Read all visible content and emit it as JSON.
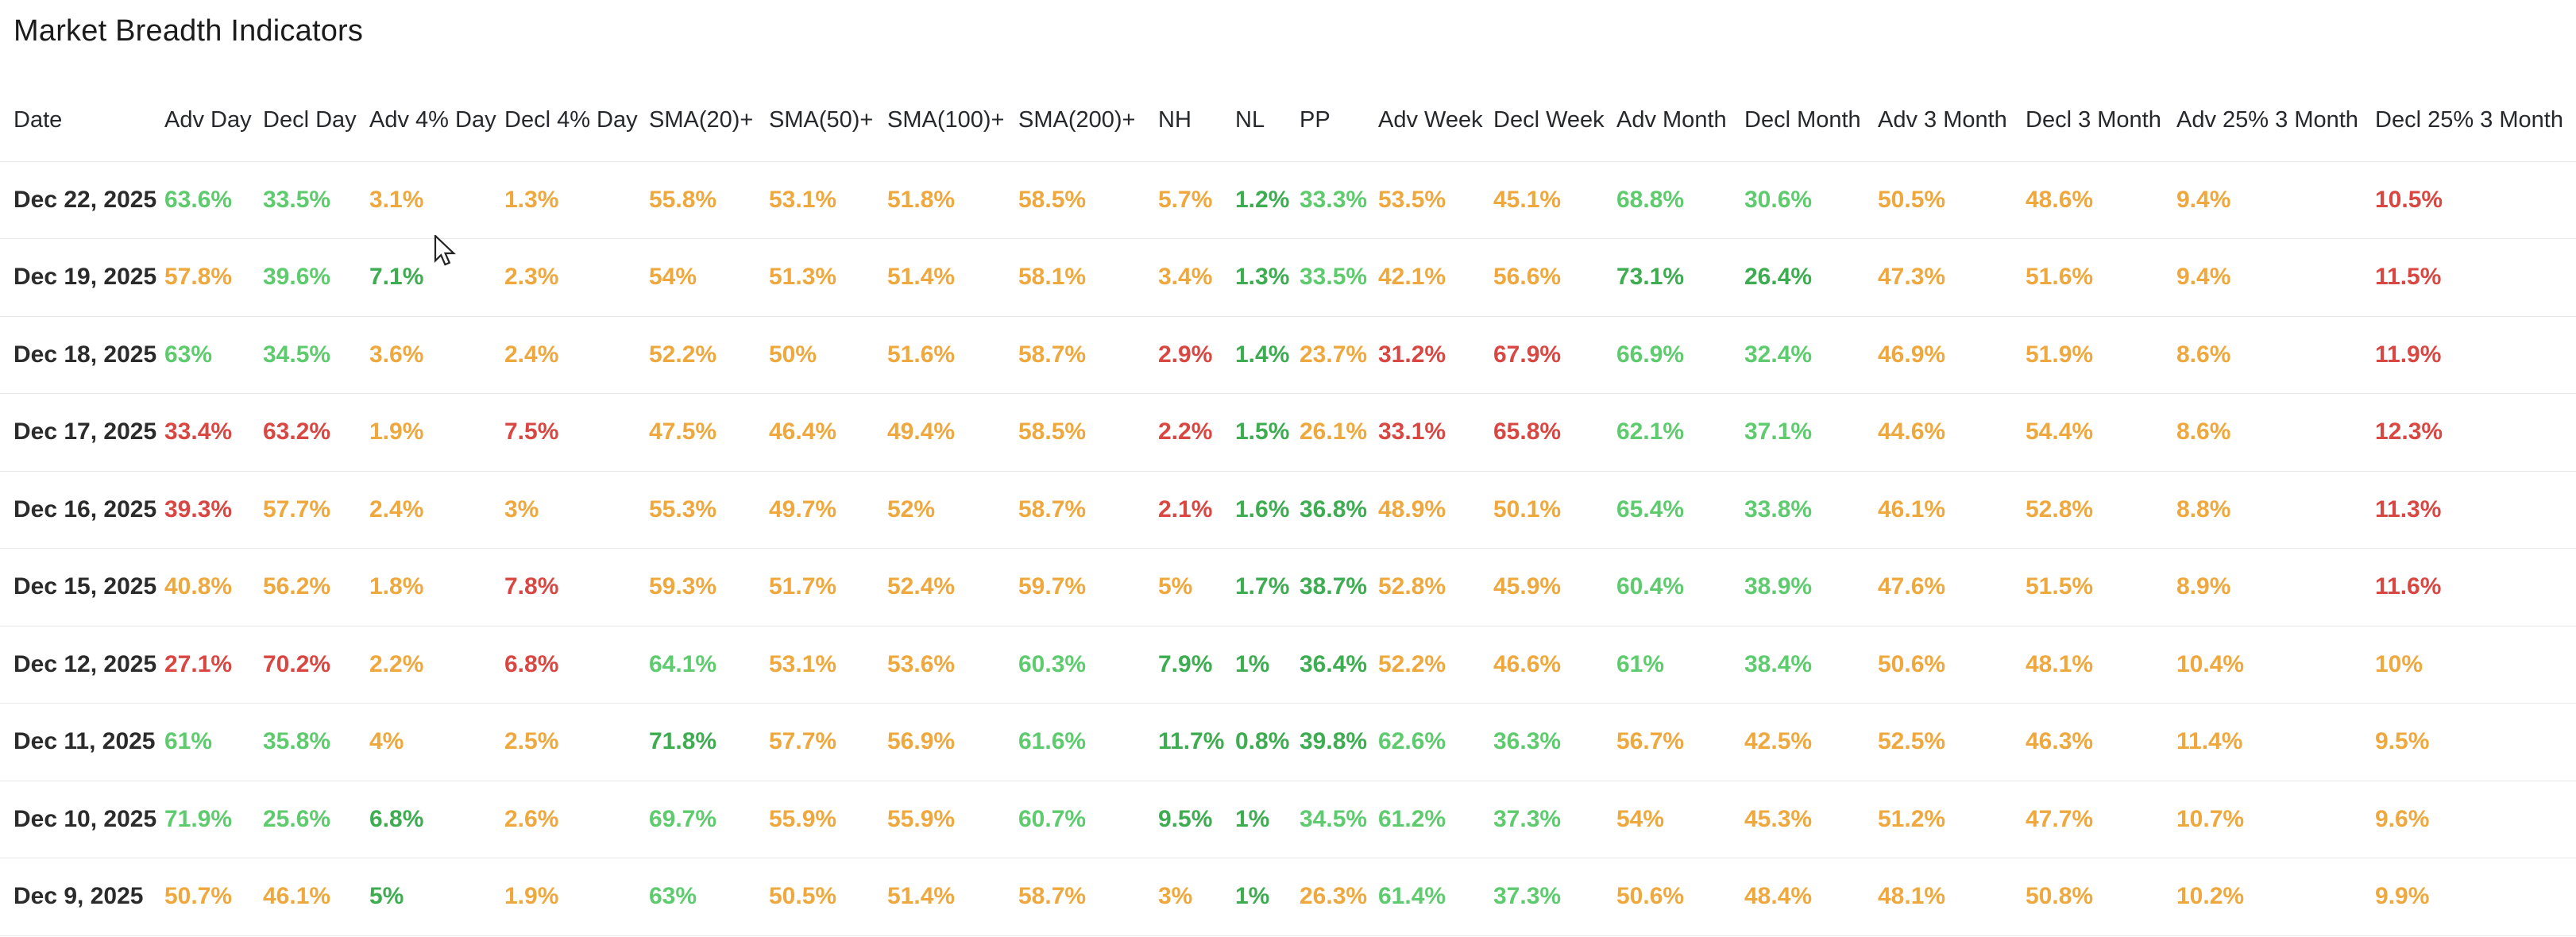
{
  "page": {
    "title": "Market Breadth Indicators"
  },
  "colors": {
    "light_green": "#5ECB6E",
    "dark_green": "#3EAC51",
    "amber": "#EEA83E",
    "red": "#D94743",
    "date_text": "#2b2b2b",
    "header_text": "#26282b",
    "divider": "#e8e8e8"
  },
  "table": {
    "columns": [
      "Date",
      "Adv Day",
      "Decl Day",
      "Adv 4% Day",
      "Decl 4% Day",
      "SMA(20)+",
      "SMA(50)+",
      "SMA(100)+",
      "SMA(200)+",
      "NH",
      "NL",
      "PP",
      "Adv Week",
      "Decl Week",
      "Adv Month",
      "Decl Month",
      "Adv 3 Month",
      "Decl 3 Month",
      "Adv 25% 3 Month",
      "Decl 25% 3 Month"
    ],
    "rows": [
      {
        "date": "Dec 22, 2025",
        "values": [
          {
            "v": "63.6%",
            "c": "lg"
          },
          {
            "v": "33.5%",
            "c": "lg"
          },
          {
            "v": "3.1%",
            "c": "am"
          },
          {
            "v": "1.3%",
            "c": "am"
          },
          {
            "v": "55.8%",
            "c": "am"
          },
          {
            "v": "53.1%",
            "c": "am"
          },
          {
            "v": "51.8%",
            "c": "am"
          },
          {
            "v": "58.5%",
            "c": "am"
          },
          {
            "v": "5.7%",
            "c": "am"
          },
          {
            "v": "1.2%",
            "c": "dg"
          },
          {
            "v": "33.3%",
            "c": "lg"
          },
          {
            "v": "53.5%",
            "c": "am"
          },
          {
            "v": "45.1%",
            "c": "am"
          },
          {
            "v": "68.8%",
            "c": "lg"
          },
          {
            "v": "30.6%",
            "c": "lg"
          },
          {
            "v": "50.5%",
            "c": "am"
          },
          {
            "v": "48.6%",
            "c": "am"
          },
          {
            "v": "9.4%",
            "c": "am"
          },
          {
            "v": "10.5%",
            "c": "rd"
          }
        ]
      },
      {
        "date": "Dec 19, 2025",
        "values": [
          {
            "v": "57.8%",
            "c": "am"
          },
          {
            "v": "39.6%",
            "c": "lg"
          },
          {
            "v": "7.1%",
            "c": "dg"
          },
          {
            "v": "2.3%",
            "c": "am"
          },
          {
            "v": "54%",
            "c": "am"
          },
          {
            "v": "51.3%",
            "c": "am"
          },
          {
            "v": "51.4%",
            "c": "am"
          },
          {
            "v": "58.1%",
            "c": "am"
          },
          {
            "v": "3.4%",
            "c": "am"
          },
          {
            "v": "1.3%",
            "c": "dg"
          },
          {
            "v": "33.5%",
            "c": "lg"
          },
          {
            "v": "42.1%",
            "c": "am"
          },
          {
            "v": "56.6%",
            "c": "am"
          },
          {
            "v": "73.1%",
            "c": "dg"
          },
          {
            "v": "26.4%",
            "c": "dg"
          },
          {
            "v": "47.3%",
            "c": "am"
          },
          {
            "v": "51.6%",
            "c": "am"
          },
          {
            "v": "9.4%",
            "c": "am"
          },
          {
            "v": "11.5%",
            "c": "rd"
          }
        ]
      },
      {
        "date": "Dec 18, 2025",
        "values": [
          {
            "v": "63%",
            "c": "lg"
          },
          {
            "v": "34.5%",
            "c": "lg"
          },
          {
            "v": "3.6%",
            "c": "am"
          },
          {
            "v": "2.4%",
            "c": "am"
          },
          {
            "v": "52.2%",
            "c": "am"
          },
          {
            "v": "50%",
            "c": "am"
          },
          {
            "v": "51.6%",
            "c": "am"
          },
          {
            "v": "58.7%",
            "c": "am"
          },
          {
            "v": "2.9%",
            "c": "rd"
          },
          {
            "v": "1.4%",
            "c": "dg"
          },
          {
            "v": "23.7%",
            "c": "am"
          },
          {
            "v": "31.2%",
            "c": "rd"
          },
          {
            "v": "67.9%",
            "c": "rd"
          },
          {
            "v": "66.9%",
            "c": "lg"
          },
          {
            "v": "32.4%",
            "c": "lg"
          },
          {
            "v": "46.9%",
            "c": "am"
          },
          {
            "v": "51.9%",
            "c": "am"
          },
          {
            "v": "8.6%",
            "c": "am"
          },
          {
            "v": "11.9%",
            "c": "rd"
          }
        ]
      },
      {
        "date": "Dec 17, 2025",
        "values": [
          {
            "v": "33.4%",
            "c": "rd"
          },
          {
            "v": "63.2%",
            "c": "rd"
          },
          {
            "v": "1.9%",
            "c": "am"
          },
          {
            "v": "7.5%",
            "c": "rd"
          },
          {
            "v": "47.5%",
            "c": "am"
          },
          {
            "v": "46.4%",
            "c": "am"
          },
          {
            "v": "49.4%",
            "c": "am"
          },
          {
            "v": "58.5%",
            "c": "am"
          },
          {
            "v": "2.2%",
            "c": "rd"
          },
          {
            "v": "1.5%",
            "c": "dg"
          },
          {
            "v": "26.1%",
            "c": "am"
          },
          {
            "v": "33.1%",
            "c": "rd"
          },
          {
            "v": "65.8%",
            "c": "rd"
          },
          {
            "v": "62.1%",
            "c": "lg"
          },
          {
            "v": "37.1%",
            "c": "lg"
          },
          {
            "v": "44.6%",
            "c": "am"
          },
          {
            "v": "54.4%",
            "c": "am"
          },
          {
            "v": "8.6%",
            "c": "am"
          },
          {
            "v": "12.3%",
            "c": "rd"
          }
        ]
      },
      {
        "date": "Dec 16, 2025",
        "values": [
          {
            "v": "39.3%",
            "c": "rd"
          },
          {
            "v": "57.7%",
            "c": "am"
          },
          {
            "v": "2.4%",
            "c": "am"
          },
          {
            "v": "3%",
            "c": "am"
          },
          {
            "v": "55.3%",
            "c": "am"
          },
          {
            "v": "49.7%",
            "c": "am"
          },
          {
            "v": "52%",
            "c": "am"
          },
          {
            "v": "58.7%",
            "c": "am"
          },
          {
            "v": "2.1%",
            "c": "rd"
          },
          {
            "v": "1.6%",
            "c": "dg"
          },
          {
            "v": "36.8%",
            "c": "dg"
          },
          {
            "v": "48.9%",
            "c": "am"
          },
          {
            "v": "50.1%",
            "c": "am"
          },
          {
            "v": "65.4%",
            "c": "lg"
          },
          {
            "v": "33.8%",
            "c": "lg"
          },
          {
            "v": "46.1%",
            "c": "am"
          },
          {
            "v": "52.8%",
            "c": "am"
          },
          {
            "v": "8.8%",
            "c": "am"
          },
          {
            "v": "11.3%",
            "c": "rd"
          }
        ]
      },
      {
        "date": "Dec 15, 2025",
        "values": [
          {
            "v": "40.8%",
            "c": "am"
          },
          {
            "v": "56.2%",
            "c": "am"
          },
          {
            "v": "1.8%",
            "c": "am"
          },
          {
            "v": "7.8%",
            "c": "rd"
          },
          {
            "v": "59.3%",
            "c": "am"
          },
          {
            "v": "51.7%",
            "c": "am"
          },
          {
            "v": "52.4%",
            "c": "am"
          },
          {
            "v": "59.7%",
            "c": "am"
          },
          {
            "v": "5%",
            "c": "am"
          },
          {
            "v": "1.7%",
            "c": "dg"
          },
          {
            "v": "38.7%",
            "c": "dg"
          },
          {
            "v": "52.8%",
            "c": "am"
          },
          {
            "v": "45.9%",
            "c": "am"
          },
          {
            "v": "60.4%",
            "c": "lg"
          },
          {
            "v": "38.9%",
            "c": "lg"
          },
          {
            "v": "47.6%",
            "c": "am"
          },
          {
            "v": "51.5%",
            "c": "am"
          },
          {
            "v": "8.9%",
            "c": "am"
          },
          {
            "v": "11.6%",
            "c": "rd"
          }
        ]
      },
      {
        "date": "Dec 12, 2025",
        "values": [
          {
            "v": "27.1%",
            "c": "rd"
          },
          {
            "v": "70.2%",
            "c": "rd"
          },
          {
            "v": "2.2%",
            "c": "am"
          },
          {
            "v": "6.8%",
            "c": "rd"
          },
          {
            "v": "64.1%",
            "c": "lg"
          },
          {
            "v": "53.1%",
            "c": "am"
          },
          {
            "v": "53.6%",
            "c": "am"
          },
          {
            "v": "60.3%",
            "c": "lg"
          },
          {
            "v": "7.9%",
            "c": "dg"
          },
          {
            "v": "1%",
            "c": "dg"
          },
          {
            "v": "36.4%",
            "c": "dg"
          },
          {
            "v": "52.2%",
            "c": "am"
          },
          {
            "v": "46.6%",
            "c": "am"
          },
          {
            "v": "61%",
            "c": "lg"
          },
          {
            "v": "38.4%",
            "c": "lg"
          },
          {
            "v": "50.6%",
            "c": "am"
          },
          {
            "v": "48.1%",
            "c": "am"
          },
          {
            "v": "10.4%",
            "c": "am"
          },
          {
            "v": "10%",
            "c": "am"
          }
        ]
      },
      {
        "date": "Dec 11, 2025",
        "values": [
          {
            "v": "61%",
            "c": "lg"
          },
          {
            "v": "35.8%",
            "c": "lg"
          },
          {
            "v": "4%",
            "c": "am"
          },
          {
            "v": "2.5%",
            "c": "am"
          },
          {
            "v": "71.8%",
            "c": "dg"
          },
          {
            "v": "57.7%",
            "c": "am"
          },
          {
            "v": "56.9%",
            "c": "am"
          },
          {
            "v": "61.6%",
            "c": "lg"
          },
          {
            "v": "11.7%",
            "c": "dg"
          },
          {
            "v": "0.8%",
            "c": "dg"
          },
          {
            "v": "39.8%",
            "c": "dg"
          },
          {
            "v": "62.6%",
            "c": "lg"
          },
          {
            "v": "36.3%",
            "c": "lg"
          },
          {
            "v": "56.7%",
            "c": "am"
          },
          {
            "v": "42.5%",
            "c": "am"
          },
          {
            "v": "52.5%",
            "c": "am"
          },
          {
            "v": "46.3%",
            "c": "am"
          },
          {
            "v": "11.4%",
            "c": "am"
          },
          {
            "v": "9.5%",
            "c": "am"
          }
        ]
      },
      {
        "date": "Dec 10, 2025",
        "values": [
          {
            "v": "71.9%",
            "c": "lg"
          },
          {
            "v": "25.6%",
            "c": "lg"
          },
          {
            "v": "6.8%",
            "c": "dg"
          },
          {
            "v": "2.6%",
            "c": "am"
          },
          {
            "v": "69.7%",
            "c": "lg"
          },
          {
            "v": "55.9%",
            "c": "am"
          },
          {
            "v": "55.9%",
            "c": "am"
          },
          {
            "v": "60.7%",
            "c": "lg"
          },
          {
            "v": "9.5%",
            "c": "dg"
          },
          {
            "v": "1%",
            "c": "dg"
          },
          {
            "v": "34.5%",
            "c": "lg"
          },
          {
            "v": "61.2%",
            "c": "lg"
          },
          {
            "v": "37.3%",
            "c": "lg"
          },
          {
            "v": "54%",
            "c": "am"
          },
          {
            "v": "45.3%",
            "c": "am"
          },
          {
            "v": "51.2%",
            "c": "am"
          },
          {
            "v": "47.7%",
            "c": "am"
          },
          {
            "v": "10.7%",
            "c": "am"
          },
          {
            "v": "9.6%",
            "c": "am"
          }
        ]
      },
      {
        "date": "Dec 9, 2025",
        "values": [
          {
            "v": "50.7%",
            "c": "am"
          },
          {
            "v": "46.1%",
            "c": "am"
          },
          {
            "v": "5%",
            "c": "dg"
          },
          {
            "v": "1.9%",
            "c": "am"
          },
          {
            "v": "63%",
            "c": "lg"
          },
          {
            "v": "50.5%",
            "c": "am"
          },
          {
            "v": "51.4%",
            "c": "am"
          },
          {
            "v": "58.7%",
            "c": "am"
          },
          {
            "v": "3%",
            "c": "am"
          },
          {
            "v": "1%",
            "c": "dg"
          },
          {
            "v": "26.3%",
            "c": "am"
          },
          {
            "v": "61.4%",
            "c": "lg"
          },
          {
            "v": "37.3%",
            "c": "lg"
          },
          {
            "v": "50.6%",
            "c": "am"
          },
          {
            "v": "48.4%",
            "c": "am"
          },
          {
            "v": "48.1%",
            "c": "am"
          },
          {
            "v": "50.8%",
            "c": "am"
          },
          {
            "v": "10.2%",
            "c": "am"
          },
          {
            "v": "9.9%",
            "c": "am"
          }
        ]
      }
    ]
  }
}
